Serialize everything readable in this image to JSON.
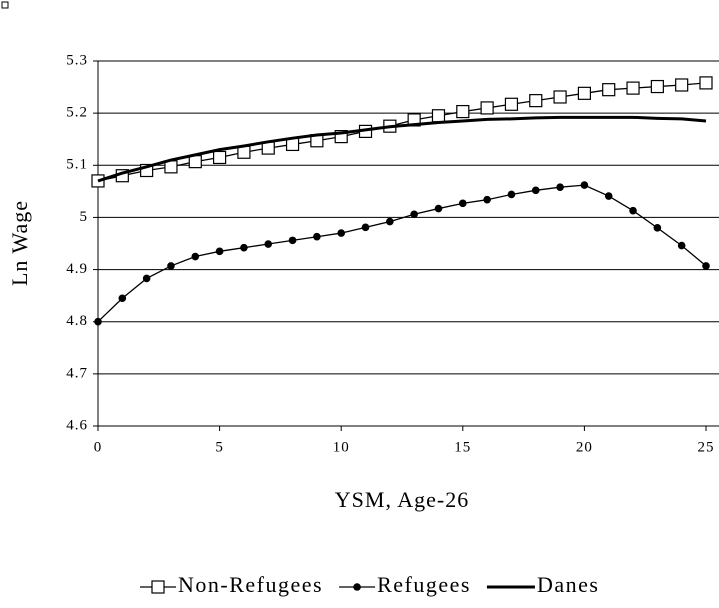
{
  "chart_data": {
    "type": "line",
    "x_label": "YSM, Age-26",
    "y_label": "Ln Wage",
    "x": [
      0,
      1,
      2,
      3,
      4,
      5,
      6,
      7,
      8,
      9,
      10,
      11,
      12,
      13,
      14,
      15,
      16,
      17,
      18,
      19,
      20,
      21,
      22,
      23,
      24,
      25
    ],
    "series": [
      {
        "name": "Non-Refugees",
        "color": "#000000",
        "marker": "square",
        "values": [
          5.07,
          5.08,
          5.09,
          5.097,
          5.107,
          5.115,
          5.125,
          5.133,
          5.14,
          5.147,
          5.155,
          5.165,
          5.175,
          5.187,
          5.195,
          5.203,
          5.21,
          5.217,
          5.224,
          5.231,
          5.238,
          5.245,
          5.248,
          5.251,
          5.254,
          5.258
        ]
      },
      {
        "name": "Refugees",
        "color": "#000000",
        "marker": "circle",
        "values": [
          4.8,
          4.845,
          4.883,
          4.907,
          4.925,
          4.935,
          4.942,
          4.949,
          4.956,
          4.963,
          4.97,
          4.981,
          4.992,
          5.006,
          5.017,
          5.027,
          5.034,
          5.044,
          5.052,
          5.058,
          5.062,
          5.041,
          5.013,
          4.98,
          4.946,
          4.907
        ]
      },
      {
        "name": "Danes",
        "color": "#000000",
        "marker": "none",
        "values": [
          5.07,
          5.085,
          5.097,
          5.11,
          5.12,
          5.13,
          5.137,
          5.145,
          5.152,
          5.158,
          5.162,
          5.168,
          5.174,
          5.178,
          5.182,
          5.185,
          5.188,
          5.189,
          5.191,
          5.192,
          5.192,
          5.192,
          5.192,
          5.19,
          5.189,
          5.185
        ]
      }
    ],
    "xlim": [
      0,
      25
    ],
    "xticks": [
      0,
      5,
      10,
      15,
      20,
      25
    ],
    "ylim": [
      4.6,
      5.3
    ],
    "yticks": [
      5.3,
      5.2,
      5.1,
      5,
      4.9,
      4.8,
      4.7,
      4.6
    ],
    "grid": true,
    "legend": "bottom"
  }
}
